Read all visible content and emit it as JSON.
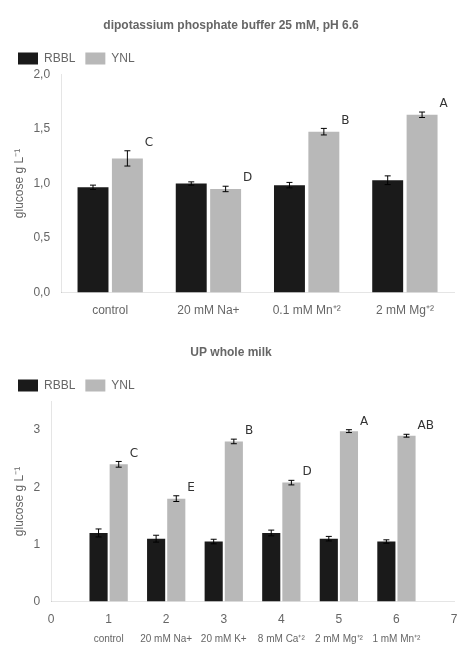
{
  "chart_data": [
    {
      "type": "bar",
      "title": "dipotassium phosphate buffer 25 mM, pH 6.6",
      "ylabel": "glucose g L⁻¹",
      "categories": [
        "control",
        "20 mM Na+",
        "0.1 mM Mn⁺²",
        "2 mM Mg⁺²"
      ],
      "series": [
        {
          "name": "RBBL",
          "color": "#1a1a1a",
          "values": [
            0.965,
            1.0,
            0.985,
            1.03
          ],
          "errors": [
            0.02,
            0.015,
            0.025,
            0.04
          ]
        },
        {
          "name": "YNL",
          "color": "#b8b8b8",
          "values": [
            1.23,
            0.95,
            1.475,
            1.63
          ],
          "errors": [
            0.07,
            0.025,
            0.03,
            0.025
          ],
          "annotations": [
            "C",
            "D",
            "B",
            "A"
          ]
        }
      ],
      "ylim": [
        0.0,
        2.0
      ],
      "yticks": [
        {
          "value": 0.0,
          "label": "0,0"
        },
        {
          "value": 0.5,
          "label": "0,5"
        },
        {
          "value": 1.0,
          "label": "1,0"
        },
        {
          "value": 1.5,
          "label": "1,5"
        },
        {
          "value": 2.0,
          "label": "2,0"
        }
      ],
      "legend": "upper left",
      "grid": false
    },
    {
      "type": "bar",
      "title": "UP whole milk",
      "ylabel": "glucose g L⁻¹",
      "x": [
        1,
        2,
        3,
        4,
        5,
        6
      ],
      "categories": [
        "control",
        "20 mM Na+",
        "20 mM K+",
        "8 mM Ca⁺²",
        "2 mM Mg⁺²",
        "1 mM Mn⁺²"
      ],
      "series": [
        {
          "name": "RBBL",
          "color": "#1a1a1a",
          "values": [
            1.2,
            1.1,
            1.05,
            1.2,
            1.1,
            1.05
          ],
          "errors": [
            0.07,
            0.06,
            0.04,
            0.05,
            0.04,
            0.03
          ]
        },
        {
          "name": "YNL",
          "color": "#b8b8b8",
          "values": [
            2.4,
            1.8,
            2.8,
            2.08,
            2.98,
            2.9
          ],
          "errors": [
            0.05,
            0.05,
            0.04,
            0.04,
            0.025,
            0.025
          ],
          "annotations": [
            "C",
            "E",
            "B",
            "D",
            "A",
            "AB"
          ]
        }
      ],
      "xlim": [
        0,
        7
      ],
      "xticks": [
        0,
        1,
        2,
        3,
        4,
        5,
        6,
        7
      ],
      "ylim": [
        0,
        3.5
      ],
      "yticks": [
        0,
        1,
        2,
        3
      ],
      "legend": "upper left",
      "grid": false
    }
  ]
}
